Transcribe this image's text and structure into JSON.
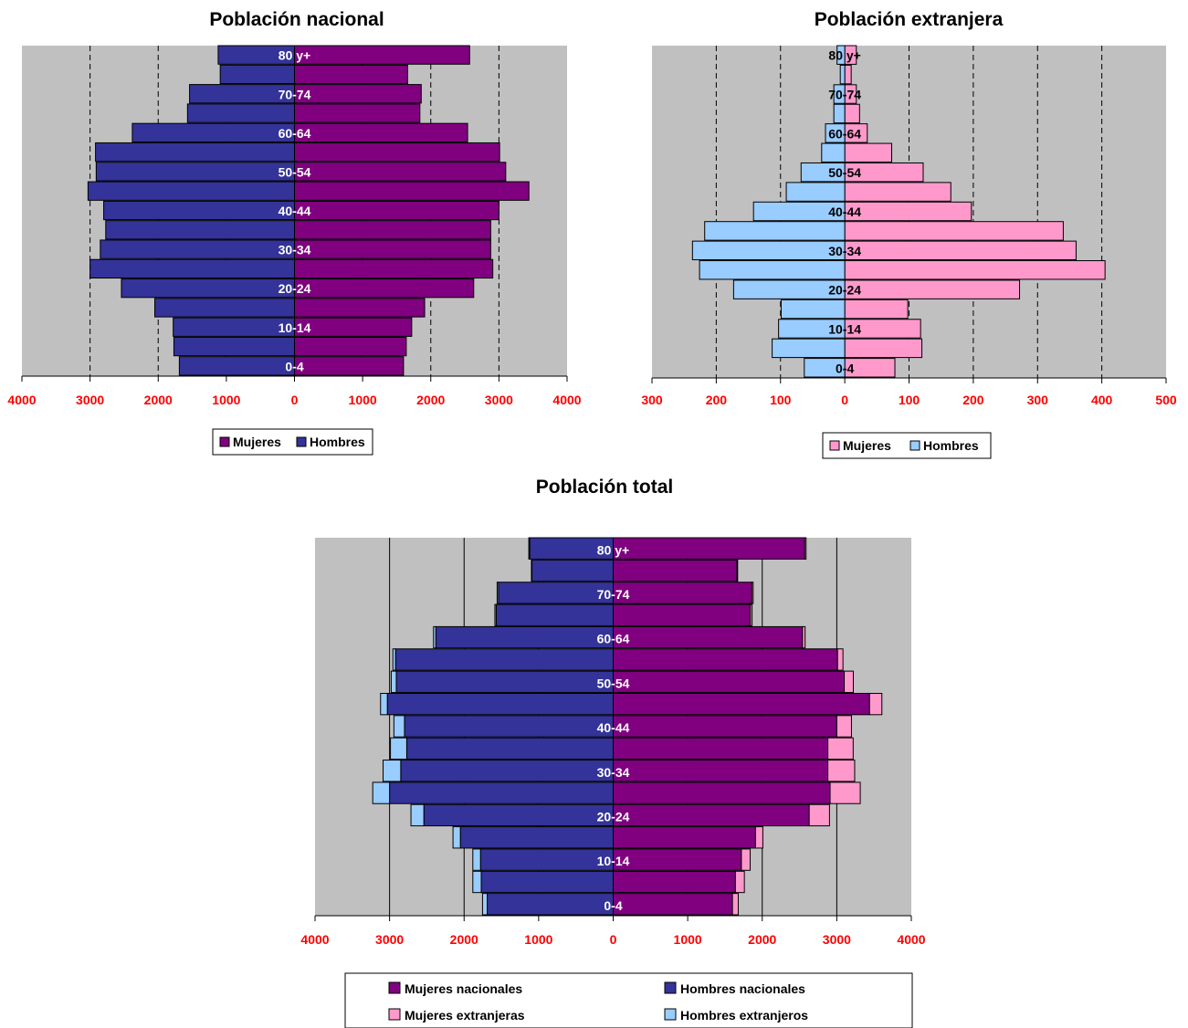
{
  "colors": {
    "plot_bg": "#c0c0c0",
    "mujeres_nacionales": "#800080",
    "hombres_nacionales": "#333399",
    "mujeres_extranjeras": "#ff99cc",
    "hombres_extranjeros": "#99ccff",
    "tick_labels": "#ff0000"
  },
  "chart_data": [
    {
      "type": "bar",
      "orientation": "horizontal-pyramid",
      "title": "Población nacional",
      "categories": [
        "0-4",
        "5-9",
        "10-14",
        "15-19",
        "20-24",
        "25-29",
        "30-34",
        "35-39",
        "40-44",
        "45-49",
        "50-54",
        "55-59",
        "60-64",
        "65-69",
        "70-74",
        "75-79",
        "80 y+"
      ],
      "category_labels": [
        "0-4",
        "",
        "10-14",
        "",
        "20-24",
        "",
        "30-34",
        "",
        "40-44",
        "",
        "50-54",
        "",
        "60-64",
        "",
        "70-74",
        "",
        "80 y+"
      ],
      "series": [
        {
          "name": "Mujeres",
          "values": [
            1600,
            1640,
            1720,
            1910,
            2630,
            2910,
            2880,
            2880,
            3000,
            3440,
            3100,
            3010,
            2540,
            1840,
            1860,
            1660,
            2570
          ]
        },
        {
          "name": "Hombres",
          "values": [
            1690,
            1770,
            1780,
            2050,
            2540,
            3000,
            2850,
            2770,
            2800,
            3030,
            2910,
            2920,
            2380,
            1570,
            1540,
            1090,
            1120
          ]
        }
      ],
      "xlim": [
        -4000,
        4000
      ],
      "x_ticks": [
        "4000",
        "3000",
        "2000",
        "1000",
        "0",
        "1000",
        "2000",
        "3000",
        "4000"
      ],
      "grid": "vertical dashed",
      "legend": [
        "Mujeres",
        "Hombres"
      ],
      "legend_position": "bottom"
    },
    {
      "type": "bar",
      "orientation": "horizontal-pyramid",
      "title": "Población extranjera",
      "categories": [
        "0-4",
        "5-9",
        "10-14",
        "15-19",
        "20-24",
        "25-29",
        "30-34",
        "35-39",
        "40-44",
        "45-49",
        "50-54",
        "55-59",
        "60-64",
        "65-69",
        "70-74",
        "75-79",
        "80 y+"
      ],
      "category_labels": [
        "0-4",
        "",
        "10-14",
        "",
        "20-24",
        "",
        "30-34",
        "",
        "40-44",
        "",
        "50-54",
        "",
        "60-64",
        "",
        "70-74",
        "",
        "80 y+"
      ],
      "series": [
        {
          "name": "Mujeres",
          "values": [
            78,
            120,
            118,
            98,
            272,
            405,
            360,
            340,
            197,
            165,
            122,
            73,
            35,
            23,
            18,
            10,
            18
          ]
        },
        {
          "name": "Hombres",
          "values": [
            63,
            113,
            103,
            99,
            173,
            226,
            237,
            218,
            142,
            91,
            68,
            36,
            30,
            17,
            17,
            7,
            12
          ]
        }
      ],
      "xlim": [
        -300,
        500
      ],
      "x_ticks": [
        "300",
        "200",
        "100",
        "0",
        "100",
        "200",
        "300",
        "400",
        "500"
      ],
      "grid": "vertical dashed",
      "legend": [
        "Mujeres",
        "Hombres"
      ],
      "legend_position": "bottom"
    },
    {
      "type": "bar",
      "orientation": "horizontal-pyramid-stacked",
      "title": "Población total",
      "categories": [
        "0-4",
        "5-9",
        "10-14",
        "15-19",
        "20-24",
        "25-29",
        "30-34",
        "35-39",
        "40-44",
        "45-49",
        "50-54",
        "55-59",
        "60-64",
        "65-69",
        "70-74",
        "75-79",
        "80 y+"
      ],
      "category_labels": [
        "0-4",
        "",
        "10-14",
        "",
        "20-24",
        "",
        "30-34",
        "",
        "40-44",
        "",
        "50-54",
        "",
        "60-64",
        "",
        "70-74",
        "",
        "80 y+"
      ],
      "series": [
        {
          "name": "Mujeres nacionales",
          "values": [
            1600,
            1640,
            1720,
            1910,
            2630,
            2910,
            2880,
            2880,
            3000,
            3440,
            3100,
            3010,
            2540,
            1840,
            1860,
            1660,
            2570
          ]
        },
        {
          "name": "Hombres nacionales",
          "values": [
            1690,
            1770,
            1780,
            2050,
            2540,
            3000,
            2850,
            2770,
            2800,
            3030,
            2910,
            2920,
            2380,
            1570,
            1540,
            1090,
            1120
          ]
        },
        {
          "name": "Mujeres extranjeras",
          "values": [
            78,
            120,
            118,
            98,
            272,
            405,
            360,
            340,
            197,
            165,
            122,
            73,
            35,
            23,
            18,
            10,
            18
          ]
        },
        {
          "name": "Hombres extranjeros",
          "values": [
            63,
            113,
            103,
            99,
            173,
            226,
            237,
            218,
            142,
            91,
            68,
            36,
            30,
            17,
            17,
            7,
            12
          ]
        }
      ],
      "xlim": [
        -4000,
        4000
      ],
      "x_ticks": [
        "4000",
        "3000",
        "2000",
        "1000",
        "0",
        "1000",
        "2000",
        "3000",
        "4000"
      ],
      "grid": "vertical solid",
      "legend": [
        "Mujeres nacionales",
        "Hombres nacionales",
        "Mujeres extranjeras",
        "Hombres extranjeros"
      ],
      "legend_position": "bottom"
    }
  ]
}
